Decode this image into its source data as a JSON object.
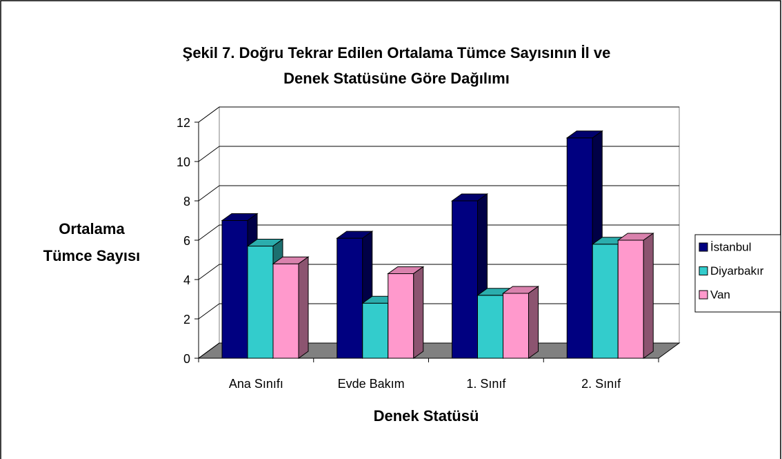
{
  "chart_data": {
    "type": "bar3d",
    "title": [
      "Şekil 7. Doğru Tekrar Edilen Ortalama Tümce Sayısının İl ve",
      "Denek Statüsüne Göre Dağılımı"
    ],
    "y_label": [
      "Ortalama",
      "Tümce Sayısı"
    ],
    "x_label": "Denek Statüsü",
    "categories": [
      "Ana Sınıfı",
      "Evde Bakım",
      "1. Sınıf",
      "2. Sınıf"
    ],
    "series": [
      {
        "name": "İstanbul",
        "color": "#000080",
        "values": [
          7.0,
          6.1,
          8.0,
          11.2
        ]
      },
      {
        "name": "Diyarbakır",
        "color": "#33CCCC",
        "values": [
          5.7,
          2.8,
          3.2,
          5.8
        ]
      },
      {
        "name": "Van",
        "color": "#FF99CC",
        "values": [
          4.8,
          4.3,
          3.3,
          6.0
        ]
      }
    ],
    "ylim": [
      0,
      12
    ],
    "yticks": [
      0,
      2,
      4,
      6,
      8,
      10,
      12
    ],
    "grid": true,
    "legend": "right"
  }
}
